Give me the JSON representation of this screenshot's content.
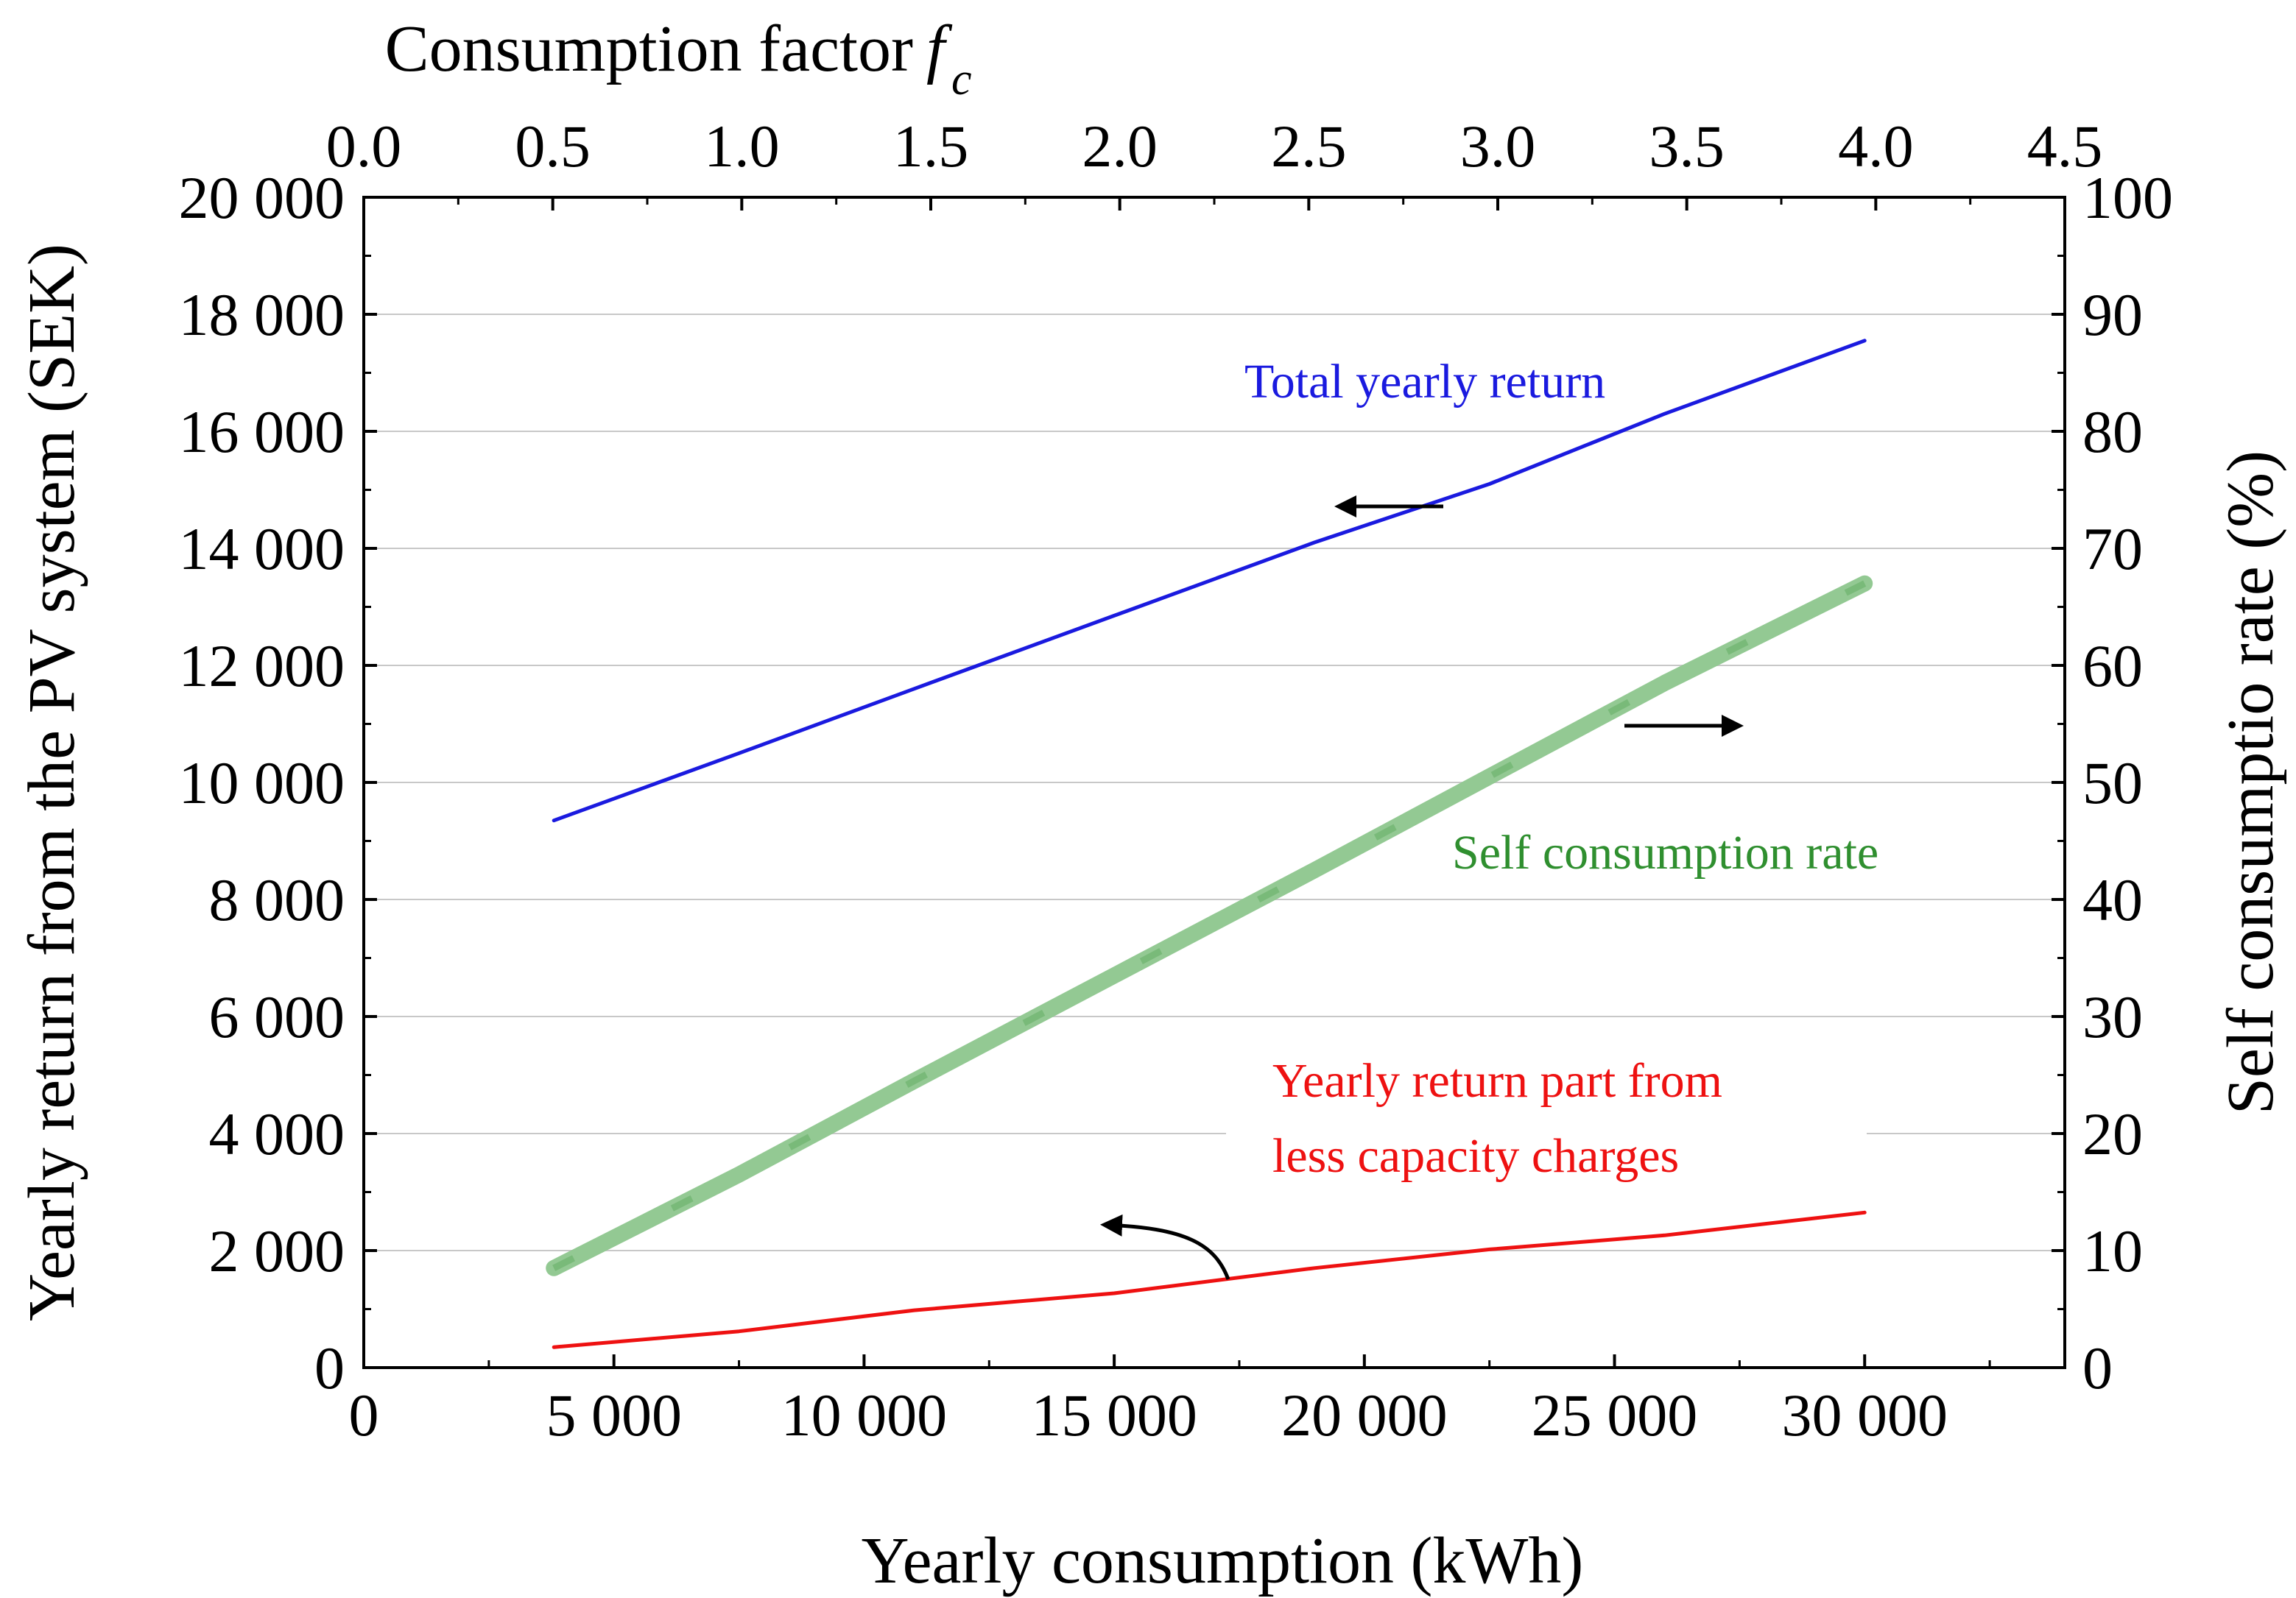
{
  "chart_data": {
    "type": "line",
    "x_axis_bottom": {
      "label": "Yearly consumption (kWh)",
      "range": [
        0,
        34000
      ],
      "ticks": [
        0,
        5000,
        10000,
        15000,
        20000,
        25000,
        30000
      ],
      "tick_labels": [
        "0",
        "5 000",
        "10 000",
        "15 000",
        "20 000",
        "25 000",
        "30 000"
      ]
    },
    "x_axis_top": {
      "label": "Consumption factor",
      "label_symbol": "f",
      "label_subscript": "c",
      "range": [
        0.0,
        4.5
      ],
      "tick_labels": [
        "0.0",
        "0.5",
        "1.0",
        "1.5",
        "2.0",
        "2.5",
        "3.0",
        "3.5",
        "4.0",
        "4.5"
      ]
    },
    "y_axis_left": {
      "label": "Yearly return from the PV system (SEK)",
      "range": [
        0,
        20000
      ],
      "ticks": [
        0,
        2000,
        4000,
        6000,
        8000,
        10000,
        12000,
        14000,
        16000,
        18000,
        20000
      ],
      "tick_labels": [
        "0",
        "2 000",
        "4 000",
        "6 000",
        "8 000",
        "10 000",
        "12 000",
        "14 000",
        "16 000",
        "18 000",
        "20 000"
      ]
    },
    "y_axis_right": {
      "label": "Self consumptio rate (%)",
      "range": [
        0,
        100
      ],
      "ticks": [
        0,
        10,
        20,
        30,
        40,
        50,
        60,
        70,
        80,
        90,
        100
      ],
      "tick_labels": [
        "0",
        "10",
        "20",
        "30",
        "40",
        "50",
        "60",
        "70",
        "80",
        "90",
        "100"
      ]
    },
    "grid": "horizontal",
    "series": [
      {
        "name": "Total yearly return",
        "axis": "left",
        "color": "#1a1adf",
        "points": [
          [
            3800,
            9350
          ],
          [
            7500,
            10500
          ],
          [
            11000,
            11600
          ],
          [
            15000,
            12850
          ],
          [
            19000,
            14100
          ],
          [
            22500,
            15100
          ],
          [
            26000,
            16300
          ],
          [
            30000,
            17550
          ]
        ]
      },
      {
        "name": "Self consumption rate",
        "axis": "right",
        "color": "#93c993",
        "label_color": "#2f8f2f",
        "points": [
          [
            3800,
            8.5
          ],
          [
            7500,
            16.5
          ],
          [
            11000,
            24.5
          ],
          [
            15000,
            33.5
          ],
          [
            19000,
            42.5
          ],
          [
            22500,
            50.5
          ],
          [
            26000,
            58.5
          ],
          [
            30000,
            67
          ]
        ]
      },
      {
        "name": "Yearly return part from less capacity charges",
        "axis": "left",
        "color": "#ee1111",
        "points": [
          [
            3800,
            350
          ],
          [
            7500,
            620
          ],
          [
            11000,
            980
          ],
          [
            15000,
            1270
          ],
          [
            19000,
            1700
          ],
          [
            22500,
            2020
          ],
          [
            26000,
            2260
          ],
          [
            30000,
            2650
          ]
        ]
      }
    ],
    "annotations": [
      {
        "text": "Total yearly return",
        "color": "#1a1adf",
        "arrow": "left"
      },
      {
        "text": "Self consumption rate",
        "color": "#2f8f2f",
        "arrow": "right"
      },
      {
        "text": "Yearly return part from",
        "color": "#ee1111",
        "arrow": "left"
      },
      {
        "text": "less capacity charges",
        "color": "#ee1111"
      }
    ]
  }
}
